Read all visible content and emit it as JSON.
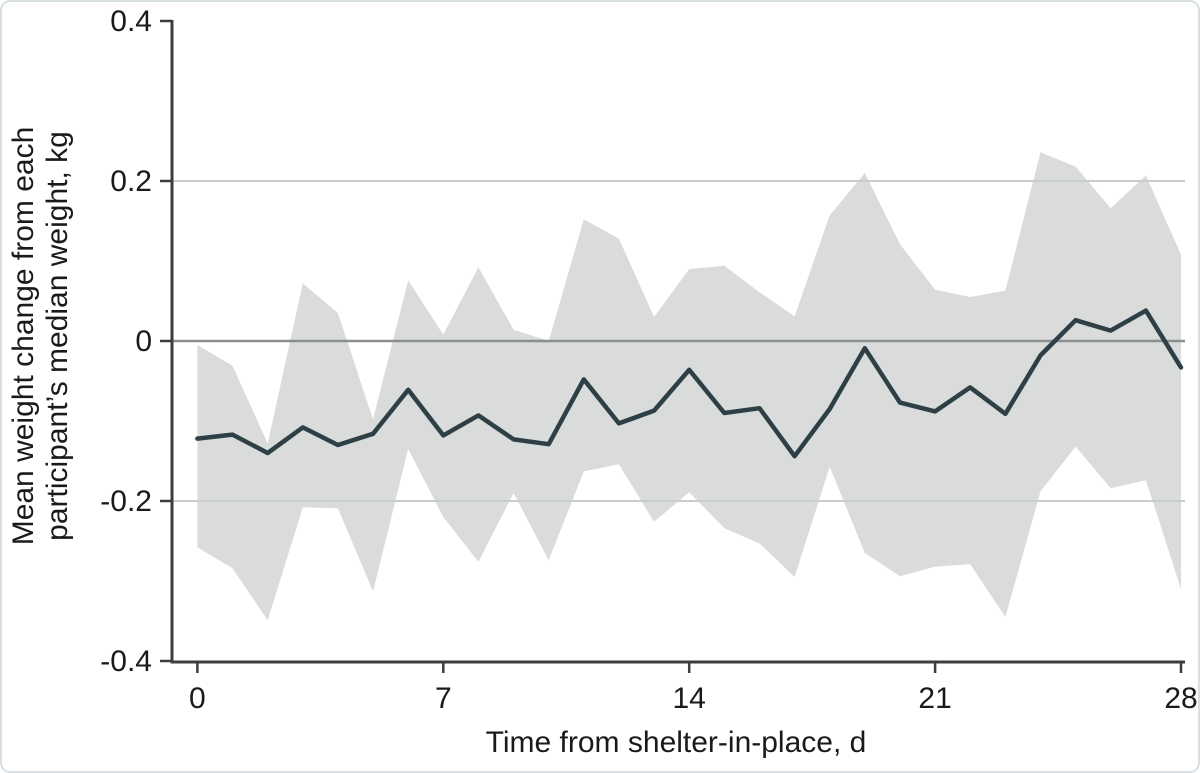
{
  "figure": {
    "xlabel": "Time from shelter-in-place, d",
    "ylabel_line1": "Mean weight change from each",
    "ylabel_line2": "participant’s median weight, kg"
  },
  "chart_data": {
    "type": "line",
    "title": "",
    "xlabel": "Time from shelter-in-place, d",
    "ylabel": "Mean weight change from each participant’s median weight, kg",
    "x": [
      0,
      1,
      2,
      3,
      4,
      5,
      6,
      7,
      8,
      9,
      10,
      11,
      12,
      13,
      14,
      15,
      16,
      17,
      18,
      19,
      20,
      21,
      22,
      23,
      24,
      25,
      26,
      27,
      28
    ],
    "series": [
      {
        "name": "mean-weight-change",
        "style": "solid-line",
        "values": [
          -0.122,
          -0.117,
          -0.14,
          -0.108,
          -0.13,
          -0.116,
          -0.061,
          -0.118,
          -0.093,
          -0.123,
          -0.129,
          -0.048,
          -0.103,
          -0.087,
          -0.036,
          -0.09,
          -0.084,
          -0.144,
          -0.085,
          -0.009,
          -0.077,
          -0.088,
          -0.058,
          -0.091,
          -0.018,
          0.026,
          0.013,
          0.038,
          -0.033
        ]
      },
      {
        "name": "ci-upper",
        "style": "band-upper-edge",
        "values": [
          -0.005,
          -0.031,
          -0.128,
          0.072,
          0.035,
          -0.098,
          0.076,
          0.008,
          0.092,
          0.014,
          0.0,
          0.152,
          0.128,
          0.03,
          0.09,
          0.094,
          0.061,
          0.031,
          0.157,
          0.21,
          0.121,
          0.064,
          0.055,
          0.063,
          0.236,
          0.218,
          0.166,
          0.207,
          0.108
        ]
      },
      {
        "name": "ci-lower",
        "style": "band-lower-edge",
        "values": [
          -0.258,
          -0.284,
          -0.349,
          -0.208,
          -0.209,
          -0.313,
          -0.135,
          -0.22,
          -0.276,
          -0.19,
          -0.274,
          -0.163,
          -0.154,
          -0.226,
          -0.189,
          -0.234,
          -0.253,
          -0.295,
          -0.157,
          -0.265,
          -0.294,
          -0.282,
          -0.279,
          -0.345,
          -0.188,
          -0.132,
          -0.184,
          -0.174,
          -0.31
        ]
      }
    ],
    "xlim": [
      0,
      28
    ],
    "ylim": [
      -0.4,
      0.4
    ],
    "xticks": [
      0,
      7,
      14,
      21,
      28
    ],
    "xtick_labels": [
      "0",
      "7",
      "14",
      "21",
      "28"
    ],
    "yticks": [
      0.4,
      0.2,
      0,
      -0.2,
      -0.4
    ],
    "ytick_labels": [
      "0.4",
      "0.2",
      "0",
      "-0.2",
      "-0.4"
    ],
    "grid": "horizontal gridlines at -0.2, 0, 0.2; zero line emphasized",
    "legend": "none",
    "colors": {
      "mean_line": "#2e4046",
      "ci_band": "#d9dcdb",
      "gridline": "#c9cccc",
      "zero_line": "#8c8f8f",
      "axis": "#3b3e3e",
      "text": "#1a1a1a"
    }
  }
}
